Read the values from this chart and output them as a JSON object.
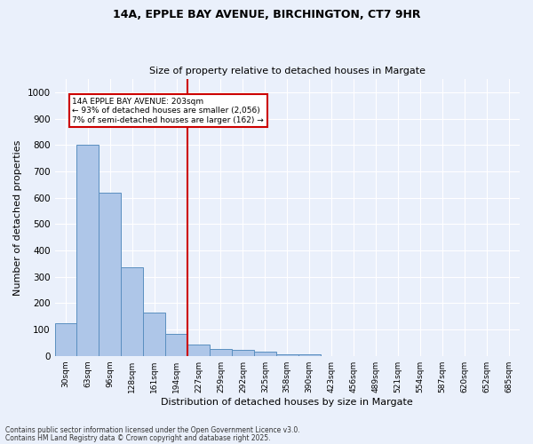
{
  "title1": "14A, EPPLE BAY AVENUE, BIRCHINGTON, CT7 9HR",
  "title2": "Size of property relative to detached houses in Margate",
  "xlabel": "Distribution of detached houses by size in Margate",
  "ylabel": "Number of detached properties",
  "categories": [
    "30sqm",
    "63sqm",
    "96sqm",
    "128sqm",
    "161sqm",
    "194sqm",
    "227sqm",
    "259sqm",
    "292sqm",
    "325sqm",
    "358sqm",
    "390sqm",
    "423sqm",
    "456sqm",
    "489sqm",
    "521sqm",
    "554sqm",
    "587sqm",
    "620sqm",
    "652sqm",
    "685sqm"
  ],
  "values": [
    125,
    800,
    618,
    335,
    165,
    82,
    42,
    27,
    22,
    17,
    7,
    5,
    0,
    0,
    0,
    0,
    0,
    0,
    0,
    0,
    0
  ],
  "bar_color": "#aec6e8",
  "bar_edge_color": "#5a8fc0",
  "vline_x": 5.5,
  "vline_color": "#cc0000",
  "annotation_line1": "14A EPPLE BAY AVENUE: 203sqm",
  "annotation_line2": "← 93% of detached houses are smaller (2,056)",
  "annotation_line3": "7% of semi-detached houses are larger (162) →",
  "annotation_box_color": "#cc0000",
  "ylim": [
    0,
    1050
  ],
  "yticks": [
    0,
    100,
    200,
    300,
    400,
    500,
    600,
    700,
    800,
    900,
    1000
  ],
  "background_color": "#eaf0fb",
  "grid_color": "#ffffff",
  "footer1": "Contains HM Land Registry data © Crown copyright and database right 2025.",
  "footer2": "Contains public sector information licensed under the Open Government Licence v3.0."
}
